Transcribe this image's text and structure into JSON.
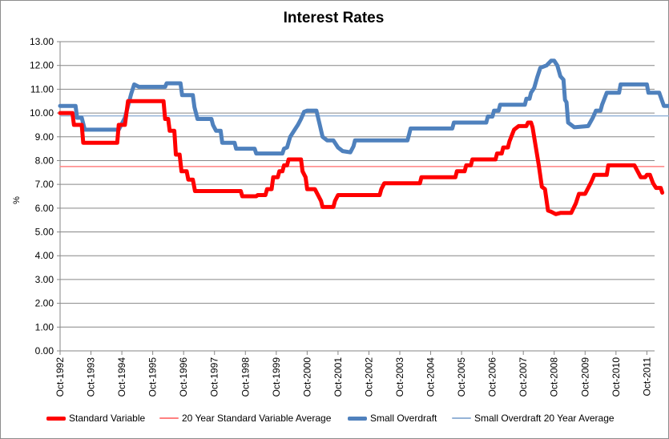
{
  "chart_data": {
    "type": "line",
    "title": "Interest Rates",
    "xlabel": "",
    "ylabel": "%",
    "ylim": [
      0,
      13
    ],
    "yticks": [
      "0.00",
      "1.00",
      "2.00",
      "3.00",
      "4.00",
      "5.00",
      "6.00",
      "7.00",
      "8.00",
      "9.00",
      "10.00",
      "11.00",
      "12.00",
      "13.00"
    ],
    "xlim": [
      1992.75,
      2012.0
    ],
    "xticks": [
      {
        "label": "Oct-1992",
        "x": 1992.75
      },
      {
        "label": "Oct-1993",
        "x": 1993.75
      },
      {
        "label": "Oct-1994",
        "x": 1994.75
      },
      {
        "label": "Oct-1995",
        "x": 1995.75
      },
      {
        "label": "Oct-1996",
        "x": 1996.75
      },
      {
        "label": "Oct-1997",
        "x": 1997.75
      },
      {
        "label": "Oct-1998",
        "x": 1998.75
      },
      {
        "label": "Oct-1999",
        "x": 1999.75
      },
      {
        "label": "Oct-2000",
        "x": 2000.75
      },
      {
        "label": "Oct-2001",
        "x": 2001.75
      },
      {
        "label": "Oct-2002",
        "x": 2002.75
      },
      {
        "label": "Oct-2003",
        "x": 2003.75
      },
      {
        "label": "Oct-2004",
        "x": 2004.75
      },
      {
        "label": "Oct-2005",
        "x": 2005.75
      },
      {
        "label": "Oct-2006",
        "x": 2006.75
      },
      {
        "label": "Oct-2007",
        "x": 2007.75
      },
      {
        "label": "Oct-2008",
        "x": 2008.75
      },
      {
        "label": "Oct-2009",
        "x": 2009.75
      },
      {
        "label": "Oct-2010",
        "x": 2010.75
      },
      {
        "label": "Oct-2011",
        "x": 2011.75
      }
    ],
    "grid": true,
    "legend_position": "bottom",
    "series": [
      {
        "name": "Standard Variable",
        "color": "#ff0000",
        "style": "thick",
        "points": [
          [
            1992.75,
            10.0
          ],
          [
            1993.15,
            10.0
          ],
          [
            1993.2,
            9.5
          ],
          [
            1993.45,
            9.5
          ],
          [
            1993.5,
            8.75
          ],
          [
            1994.6,
            8.75
          ],
          [
            1994.65,
            9.5
          ],
          [
            1994.85,
            9.5
          ],
          [
            1994.95,
            10.5
          ],
          [
            1996.1,
            10.5
          ],
          [
            1996.15,
            9.75
          ],
          [
            1996.25,
            9.75
          ],
          [
            1996.3,
            9.25
          ],
          [
            1996.45,
            9.25
          ],
          [
            1996.5,
            8.25
          ],
          [
            1996.62,
            8.25
          ],
          [
            1996.68,
            7.55
          ],
          [
            1996.85,
            7.55
          ],
          [
            1996.9,
            7.2
          ],
          [
            1997.05,
            7.2
          ],
          [
            1997.12,
            6.72
          ],
          [
            1998.6,
            6.72
          ],
          [
            1998.65,
            6.5
          ],
          [
            1999.1,
            6.5
          ],
          [
            1999.15,
            6.55
          ],
          [
            1999.4,
            6.55
          ],
          [
            1999.45,
            6.8
          ],
          [
            1999.6,
            6.8
          ],
          [
            1999.65,
            7.3
          ],
          [
            1999.8,
            7.3
          ],
          [
            1999.85,
            7.55
          ],
          [
            1999.95,
            7.55
          ],
          [
            2000.0,
            7.8
          ],
          [
            2000.1,
            7.8
          ],
          [
            2000.15,
            8.05
          ],
          [
            2000.55,
            8.05
          ],
          [
            2000.6,
            7.55
          ],
          [
            2000.7,
            7.3
          ],
          [
            2000.75,
            6.8
          ],
          [
            2001.0,
            6.8
          ],
          [
            2001.1,
            6.55
          ],
          [
            2001.2,
            6.3
          ],
          [
            2001.25,
            6.05
          ],
          [
            2001.6,
            6.05
          ],
          [
            2001.65,
            6.3
          ],
          [
            2001.75,
            6.55
          ],
          [
            2003.1,
            6.55
          ],
          [
            2003.15,
            6.8
          ],
          [
            2003.25,
            7.05
          ],
          [
            2004.4,
            7.05
          ],
          [
            2004.45,
            7.3
          ],
          [
            2005.55,
            7.3
          ],
          [
            2005.6,
            7.55
          ],
          [
            2005.85,
            7.55
          ],
          [
            2005.9,
            7.8
          ],
          [
            2006.05,
            7.8
          ],
          [
            2006.1,
            8.05
          ],
          [
            2006.85,
            8.05
          ],
          [
            2006.9,
            8.3
          ],
          [
            2007.05,
            8.3
          ],
          [
            2007.1,
            8.55
          ],
          [
            2007.25,
            8.55
          ],
          [
            2007.3,
            8.8
          ],
          [
            2007.45,
            9.3
          ],
          [
            2007.6,
            9.45
          ],
          [
            2007.85,
            9.45
          ],
          [
            2007.9,
            9.6
          ],
          [
            2008.0,
            9.6
          ],
          [
            2008.05,
            9.4
          ],
          [
            2008.15,
            8.6
          ],
          [
            2008.25,
            7.8
          ],
          [
            2008.35,
            6.9
          ],
          [
            2008.45,
            6.8
          ],
          [
            2008.55,
            5.9
          ],
          [
            2008.65,
            5.85
          ],
          [
            2008.8,
            5.75
          ],
          [
            2008.95,
            5.8
          ],
          [
            2009.3,
            5.8
          ],
          [
            2009.45,
            6.2
          ],
          [
            2009.55,
            6.6
          ],
          [
            2009.75,
            6.6
          ],
          [
            2009.95,
            7.1
          ],
          [
            2010.05,
            7.4
          ],
          [
            2010.45,
            7.4
          ],
          [
            2010.5,
            7.8
          ],
          [
            2011.35,
            7.8
          ],
          [
            2011.45,
            7.55
          ],
          [
            2011.55,
            7.3
          ],
          [
            2011.7,
            7.3
          ],
          [
            2011.75,
            7.4
          ],
          [
            2011.85,
            7.4
          ],
          [
            2011.95,
            7.05
          ],
          [
            2012.05,
            6.85
          ],
          [
            2012.2,
            6.85
          ],
          [
            2012.25,
            6.65
          ]
        ]
      },
      {
        "name": "20 Year Standard Variable Average",
        "color": "#ff8080",
        "style": "thin",
        "points": [
          [
            1992.75,
            7.75
          ],
          [
            2012.3,
            7.75
          ]
        ]
      },
      {
        "name": "Small Overdraft",
        "color": "#4f81bd",
        "style": "thick",
        "points": [
          [
            1992.75,
            10.3
          ],
          [
            1993.25,
            10.3
          ],
          [
            1993.3,
            9.8
          ],
          [
            1993.45,
            9.8
          ],
          [
            1993.5,
            9.55
          ],
          [
            1993.55,
            9.3
          ],
          [
            1994.65,
            9.3
          ],
          [
            1994.75,
            9.55
          ],
          [
            1994.85,
            9.8
          ],
          [
            1994.95,
            10.3
          ],
          [
            1995.05,
            10.8
          ],
          [
            1995.15,
            11.2
          ],
          [
            1995.3,
            11.1
          ],
          [
            1996.15,
            11.1
          ],
          [
            1996.2,
            11.25
          ],
          [
            1996.65,
            11.25
          ],
          [
            1996.7,
            10.75
          ],
          [
            1997.05,
            10.75
          ],
          [
            1997.1,
            10.25
          ],
          [
            1997.2,
            9.75
          ],
          [
            1997.65,
            9.75
          ],
          [
            1997.7,
            9.5
          ],
          [
            1997.8,
            9.25
          ],
          [
            1997.95,
            9.25
          ],
          [
            1998.0,
            8.75
          ],
          [
            1998.4,
            8.75
          ],
          [
            1998.45,
            8.5
          ],
          [
            1999.05,
            8.5
          ],
          [
            1999.1,
            8.3
          ],
          [
            1999.95,
            8.3
          ],
          [
            2000.0,
            8.5
          ],
          [
            2000.1,
            8.55
          ],
          [
            2000.2,
            9.0
          ],
          [
            2000.35,
            9.3
          ],
          [
            2000.45,
            9.5
          ],
          [
            2000.55,
            9.75
          ],
          [
            2000.65,
            10.05
          ],
          [
            2000.75,
            10.1
          ],
          [
            2001.05,
            10.1
          ],
          [
            2001.15,
            9.55
          ],
          [
            2001.25,
            9.0
          ],
          [
            2001.4,
            8.85
          ],
          [
            2001.6,
            8.85
          ],
          [
            2001.75,
            8.55
          ],
          [
            2001.9,
            8.4
          ],
          [
            2002.15,
            8.35
          ],
          [
            2002.25,
            8.6
          ],
          [
            2002.3,
            8.85
          ],
          [
            2004.0,
            8.85
          ],
          [
            2004.05,
            9.1
          ],
          [
            2004.1,
            9.35
          ],
          [
            2005.45,
            9.35
          ],
          [
            2005.5,
            9.6
          ],
          [
            2006.55,
            9.6
          ],
          [
            2006.6,
            9.85
          ],
          [
            2006.75,
            9.85
          ],
          [
            2006.8,
            10.1
          ],
          [
            2006.95,
            10.1
          ],
          [
            2007.0,
            10.35
          ],
          [
            2007.8,
            10.35
          ],
          [
            2007.85,
            10.6
          ],
          [
            2007.95,
            10.6
          ],
          [
            2008.0,
            10.85
          ],
          [
            2008.1,
            11.05
          ],
          [
            2008.2,
            11.5
          ],
          [
            2008.3,
            11.9
          ],
          [
            2008.5,
            12.0
          ],
          [
            2008.65,
            12.2
          ],
          [
            2008.75,
            12.2
          ],
          [
            2008.85,
            12.0
          ],
          [
            2008.95,
            11.55
          ],
          [
            2009.05,
            11.4
          ],
          [
            2009.1,
            10.55
          ],
          [
            2009.15,
            10.45
          ],
          [
            2009.2,
            9.6
          ],
          [
            2009.3,
            9.5
          ],
          [
            2009.4,
            9.4
          ],
          [
            2009.85,
            9.45
          ],
          [
            2010.0,
            9.8
          ],
          [
            2010.1,
            10.1
          ],
          [
            2010.25,
            10.1
          ],
          [
            2010.3,
            10.35
          ],
          [
            2010.45,
            10.85
          ],
          [
            2010.85,
            10.85
          ],
          [
            2010.9,
            11.2
          ],
          [
            2011.75,
            11.2
          ],
          [
            2011.8,
            10.85
          ],
          [
            2012.15,
            10.85
          ],
          [
            2012.3,
            10.3
          ],
          [
            2012.5,
            10.3
          ],
          [
            2012.6,
            10.25
          ]
        ]
      },
      {
        "name": "Small Overdraft 20 Year Average",
        "color": "#95b3d7",
        "style": "thin",
        "points": [
          [
            1992.75,
            9.88
          ],
          [
            2012.6,
            9.88
          ]
        ]
      }
    ]
  }
}
